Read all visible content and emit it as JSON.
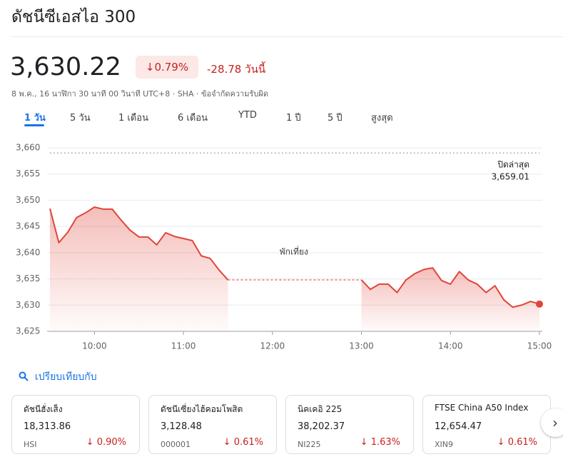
{
  "header": {
    "title": "ดัชนีซีเอสไอ 300",
    "price": "3,630.22",
    "change_percent": "0.79%",
    "change": "-28.78",
    "change_period": "วันนี้",
    "subtitle": "8 พ.ค., 16 นาฬิกา 30 นาที 00 วินาที UTC+8 · SHA · ข้อจำกัดความรับผิด"
  },
  "tabs": [
    "1 วัน",
    "5 วัน",
    "1 เดือน",
    "6 เดือน",
    "YTD",
    "1 ปี",
    "5 ปี",
    "สูงสุด"
  ],
  "chart_data": {
    "type": "line",
    "color": "#e0453a",
    "grid": true,
    "x": [
      9.5,
      9.6,
      9.7,
      9.8,
      9.9,
      10.0,
      10.1,
      10.2,
      10.3,
      10.4,
      10.5,
      10.6,
      10.7,
      10.8,
      10.9,
      11.0,
      11.1,
      11.2,
      11.3,
      11.4,
      11.5,
      12.0,
      13.0,
      13.1,
      13.2,
      13.3,
      13.4,
      13.5,
      13.6,
      13.7,
      13.8,
      13.9,
      14.0,
      14.1,
      14.2,
      14.3,
      14.4,
      14.5,
      14.6,
      14.7,
      14.8,
      14.9,
      15.0
    ],
    "values": [
      3648.4,
      3641.9,
      3643.9,
      3646.7,
      3647.6,
      3648.7,
      3648.3,
      3648.3,
      3646.2,
      3644.3,
      3643.0,
      3643.0,
      3641.5,
      3643.8,
      3643.1,
      3642.7,
      3642.3,
      3639.4,
      3638.9,
      3636.7,
      3634.8,
      null,
      3634.8,
      3633.0,
      3634.0,
      3634.0,
      3632.4,
      3634.8,
      3636.0,
      3636.8,
      3637.1,
      3634.7,
      3634.0,
      3636.4,
      3634.8,
      3634.0,
      3632.4,
      3633.7,
      3631.0,
      3629.6,
      3630.0,
      3630.7,
      3630.2
    ],
    "xlim": [
      9.5,
      15
    ],
    "ylim": [
      3625,
      3660
    ],
    "xticks": [
      {
        "value": 10,
        "label": "10:00"
      },
      {
        "value": 11,
        "label": "11:00"
      },
      {
        "value": 12,
        "label": "12:00"
      },
      {
        "value": 13,
        "label": "13:00"
      },
      {
        "value": 14,
        "label": "14:00"
      },
      {
        "value": 15,
        "label": "15:00"
      }
    ],
    "yticks": [
      {
        "value": 3625,
        "label": "3,625"
      },
      {
        "value": 3630,
        "label": "3,630"
      },
      {
        "value": 3635,
        "label": "3,635"
      },
      {
        "value": 3640,
        "label": "3,640"
      },
      {
        "value": 3645,
        "label": "3,645"
      },
      {
        "value": 3650,
        "label": "3,650"
      },
      {
        "value": 3655,
        "label": "3,655"
      },
      {
        "value": 3660,
        "label": "3,660"
      }
    ],
    "reference_line": {
      "name": "ปิดล่าสุด",
      "value": 3659.01,
      "value_label": "3,659.01"
    },
    "annotation": {
      "text": "พักเที่ยง",
      "x": 12.0,
      "y": 3640
    }
  },
  "compare": {
    "label": "เปรียบเทียบกับ"
  },
  "cards": [
    {
      "name": "ดัชนีฮั่งเส็ง",
      "price": "18,313.86",
      "symbol": "HSI",
      "change": "0.90%"
    },
    {
      "name": "ดัชนีเซี่ยงไฮ้คอมโพสิต",
      "price": "3,128.48",
      "symbol": "000001",
      "change": "0.61%"
    },
    {
      "name": "นิคเคอิ 225",
      "price": "38,202.37",
      "symbol": "NI225",
      "change": "1.63%"
    },
    {
      "name": "FTSE China A50 Index",
      "price": "12,654.47",
      "symbol": "XIN9",
      "change": "0.61%"
    }
  ]
}
